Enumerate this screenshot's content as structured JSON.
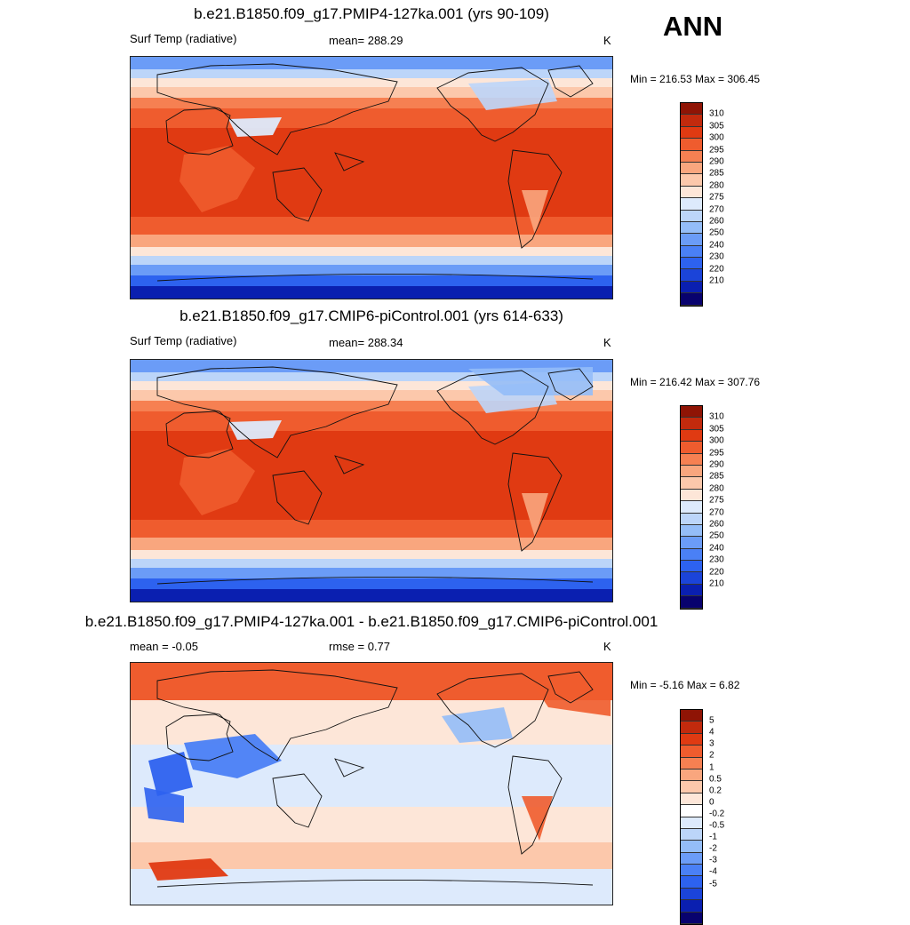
{
  "season": "ANN",
  "colors": {
    "abs_scale": [
      "#08026e",
      "#0a1fb0",
      "#1b44d9",
      "#2d62ef",
      "#4a80f6",
      "#6b9cf7",
      "#94bdf8",
      "#bcd5f9",
      "#ddeafc",
      "#fde6d8",
      "#fcc8ab",
      "#f9a67e",
      "#f68052",
      "#ef5c2e",
      "#e03a12",
      "#c22a0d",
      "#8f1405"
    ],
    "diff_scale": [
      "#08026e",
      "#0a1fb0",
      "#1b44d9",
      "#2d62ef",
      "#4a80f6",
      "#6b9cf7",
      "#94bdf8",
      "#bcd5f9",
      "#ddeafc",
      "#ffffff",
      "#fde6d8",
      "#fcc8ab",
      "#f9a67e",
      "#f68052",
      "#ef5c2e",
      "#e03a12",
      "#c22a0d",
      "#8f1405"
    ]
  },
  "panels": [
    {
      "title": "b.e21.B1850.f09_g17.PMIP4-127ka.001 (yrs 90-109)",
      "left_label": "Surf Temp (radiative)",
      "center_label": "mean= 288.29",
      "units": "K",
      "minmax": "Min = 216.53 Max = 306.45",
      "ticks": [
        "310",
        "305",
        "300",
        "295",
        "290",
        "285",
        "280",
        "275",
        "270",
        "260",
        "250",
        "240",
        "230",
        "220",
        "210"
      ]
    },
    {
      "title": "b.e21.B1850.f09_g17.CMIP6-piControl.001 (yrs 614-633)",
      "left_label": "Surf Temp (radiative)",
      "center_label": "mean= 288.34",
      "units": "K",
      "minmax": "Min = 216.42 Max = 307.76",
      "ticks": [
        "310",
        "305",
        "300",
        "295",
        "290",
        "285",
        "280",
        "275",
        "270",
        "260",
        "250",
        "240",
        "230",
        "220",
        "210"
      ]
    },
    {
      "title": "b.e21.B1850.f09_g17.PMIP4-127ka.001 - b.e21.B1850.f09_g17.CMIP6-piControl.001",
      "left_label": "mean =  -0.05",
      "center_label": "rmse =   0.77",
      "units": "K",
      "minmax": "Min =  -5.16 Max =   6.82",
      "ticks": [
        "5",
        "4",
        "3",
        "2",
        "1",
        "0.5",
        "0.2",
        "0",
        "-0.2",
        "-0.5",
        "-1",
        "-2",
        "-3",
        "-4",
        "-5"
      ]
    }
  ]
}
